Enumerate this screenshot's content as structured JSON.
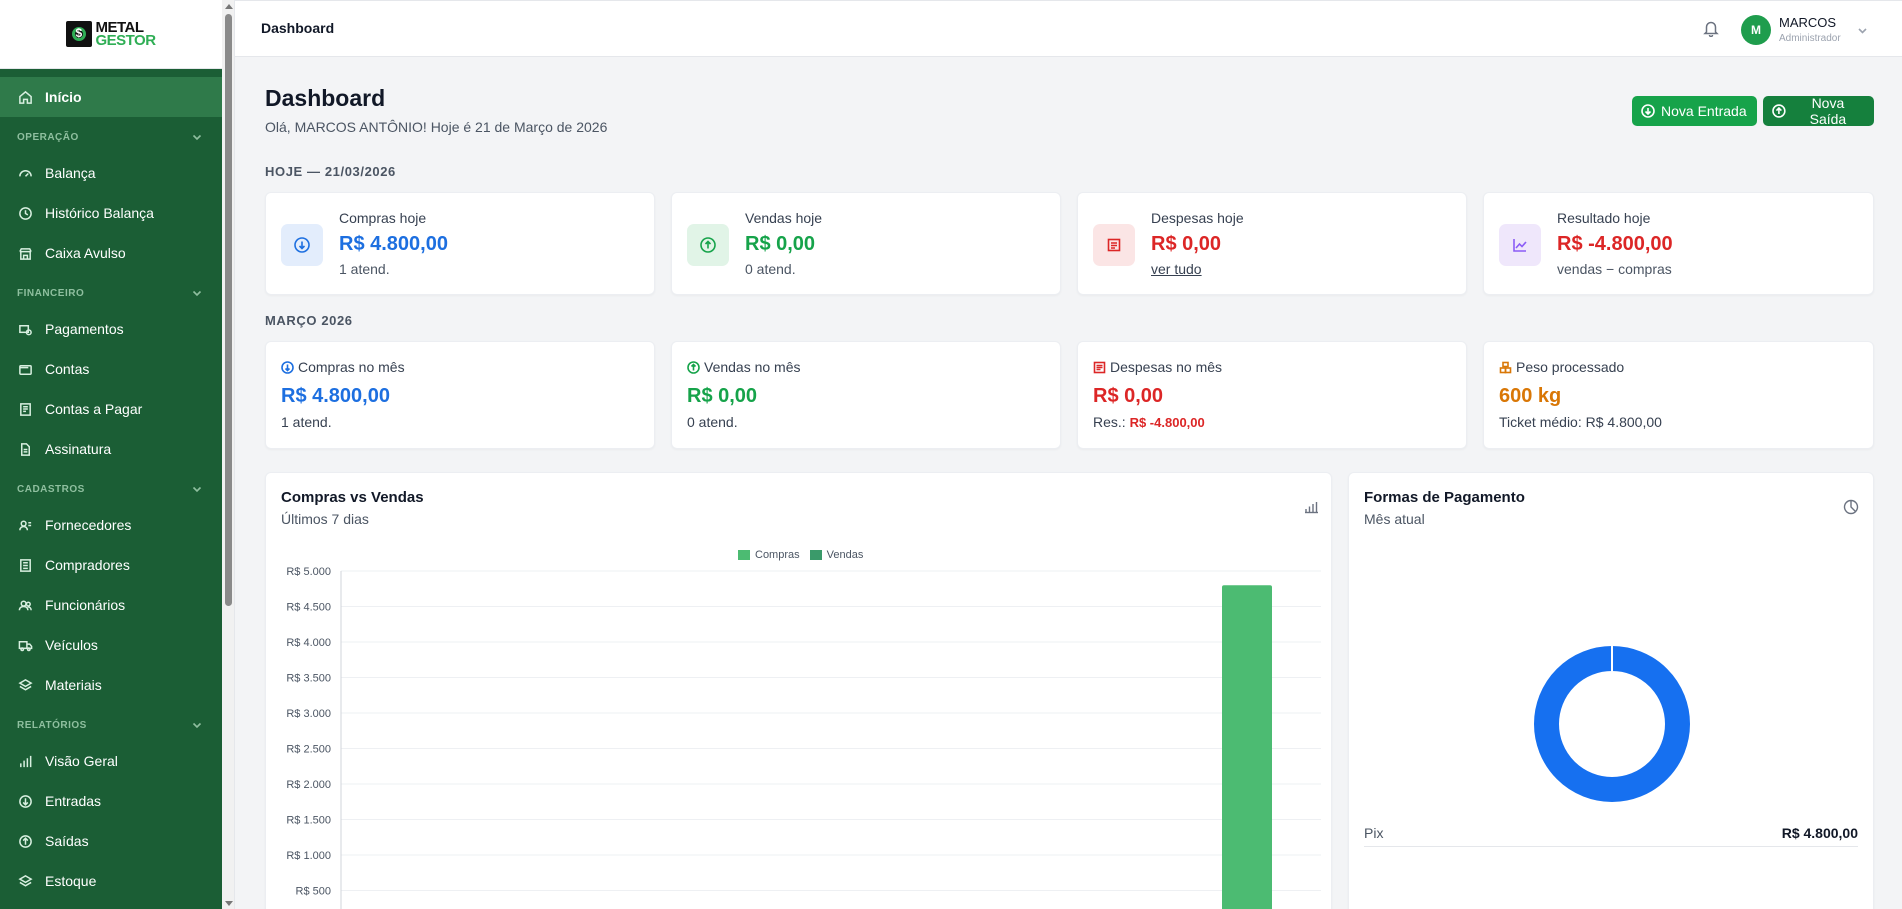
{
  "app": {
    "logo_line1": "METAL",
    "logo_line2": "GESTOR",
    "brand_color": "#1b5e35",
    "accent_color": "#16a34a"
  },
  "sidebar": {
    "home": {
      "label": "Início",
      "icon": "home-icon"
    },
    "sections": [
      {
        "title": "OPERAÇÃO",
        "items": [
          {
            "label": "Balança",
            "icon": "gauge-icon"
          },
          {
            "label": "Histórico Balança",
            "icon": "clock-icon"
          },
          {
            "label": "Caixa Avulso",
            "icon": "store-icon"
          }
        ]
      },
      {
        "title": "FINANCEIRO",
        "items": [
          {
            "label": "Pagamentos",
            "icon": "payments-icon"
          },
          {
            "label": "Contas",
            "icon": "wallet-icon"
          },
          {
            "label": "Contas a Pagar",
            "icon": "receipt-icon"
          },
          {
            "label": "Assinatura",
            "icon": "document-icon"
          }
        ]
      },
      {
        "title": "CADASTROS",
        "items": [
          {
            "label": "Fornecedores",
            "icon": "user-list-icon"
          },
          {
            "label": "Compradores",
            "icon": "building-icon"
          },
          {
            "label": "Funcionários",
            "icon": "users-icon"
          },
          {
            "label": "Veículos",
            "icon": "truck-icon"
          },
          {
            "label": "Materiais",
            "icon": "layers-icon"
          }
        ]
      },
      {
        "title": "RELATÓRIOS",
        "items": [
          {
            "label": "Visão Geral",
            "icon": "bar-chart-icon"
          },
          {
            "label": "Entradas",
            "icon": "arrow-down-circle-icon"
          },
          {
            "label": "Saídas",
            "icon": "arrow-up-circle-icon"
          },
          {
            "label": "Estoque",
            "icon": "layers-icon"
          }
        ]
      }
    ]
  },
  "topbar": {
    "title": "Dashboard",
    "user_initial": "M",
    "user_name": "MARCOS",
    "user_role": "Administrador"
  },
  "page": {
    "title": "Dashboard",
    "greeting": "Olá, MARCOS ANTÔNIO! Hoje é 21 de Março de 2026",
    "btn_in": "Nova Entrada",
    "btn_out": "Nova Saída"
  },
  "today": {
    "label": "HOJE — 21/03/2026",
    "cards": [
      {
        "label": "Compras hoje",
        "value": "R$ 4.800,00",
        "sub": "1 atend.",
        "color": "#1d6fe0"
      },
      {
        "label": "Vendas hoje",
        "value": "R$ 0,00",
        "sub": "0 atend.",
        "color": "#16a34a"
      },
      {
        "label": "Despesas hoje",
        "value": "R$ 0,00",
        "sub": "ver tudo",
        "color": "#dc2626"
      },
      {
        "label": "Resultado hoje",
        "value": "R$ -4.800,00",
        "sub": "vendas − compras",
        "color": "#dc2626"
      }
    ]
  },
  "month": {
    "label": "MARÇO 2026",
    "cards": [
      {
        "label": "Compras no mês",
        "value": "R$ 4.800,00",
        "sub": "1 atend."
      },
      {
        "label": "Vendas no mês",
        "value": "R$ 0,00",
        "sub": "0 atend."
      },
      {
        "label": "Despesas no mês",
        "value": "R$ 0,00",
        "sub_prefix": "Res.: ",
        "sub_value": "R$ -4.800,00"
      },
      {
        "label": "Peso processado",
        "value": "600 kg",
        "sub": "Ticket médio: R$ 4.800,00"
      }
    ]
  },
  "compras_vendas": {
    "title": "Compras vs Vendas",
    "subtitle": "Últimos 7 dias"
  },
  "formas_pagamento": {
    "title": "Formas de Pagamento",
    "subtitle": "Mês atual",
    "rows": [
      {
        "label": "Pix",
        "value": "R$ 4.800,00"
      }
    ]
  },
  "chart_data": [
    {
      "type": "bar",
      "title": "Compras vs Vendas",
      "subtitle": "Últimos 7 dias",
      "legend_position": "top-center",
      "series": [
        {
          "name": "Compras",
          "color": "#4cbb72",
          "values": [
            0,
            0,
            0,
            0,
            0,
            0,
            4800
          ]
        },
        {
          "name": "Vendas",
          "color": "#3a9a6a",
          "values": [
            0,
            0,
            0,
            0,
            0,
            0,
            0
          ]
        }
      ],
      "y_ticks": [
        "R$ 5.000",
        "R$ 4.500",
        "R$ 4.000",
        "R$ 3.500",
        "R$ 3.000",
        "R$ 2.500",
        "R$ 2.000",
        "R$ 1.500",
        "R$ 1.000",
        "R$ 500"
      ],
      "ylim": [
        0,
        5000
      ],
      "grid": true
    },
    {
      "type": "pie",
      "title": "Formas de Pagamento",
      "subtitle": "Mês atual",
      "donut": true,
      "slices": [
        {
          "label": "Pix",
          "value": 4800,
          "color": "#1670f0"
        }
      ]
    }
  ]
}
